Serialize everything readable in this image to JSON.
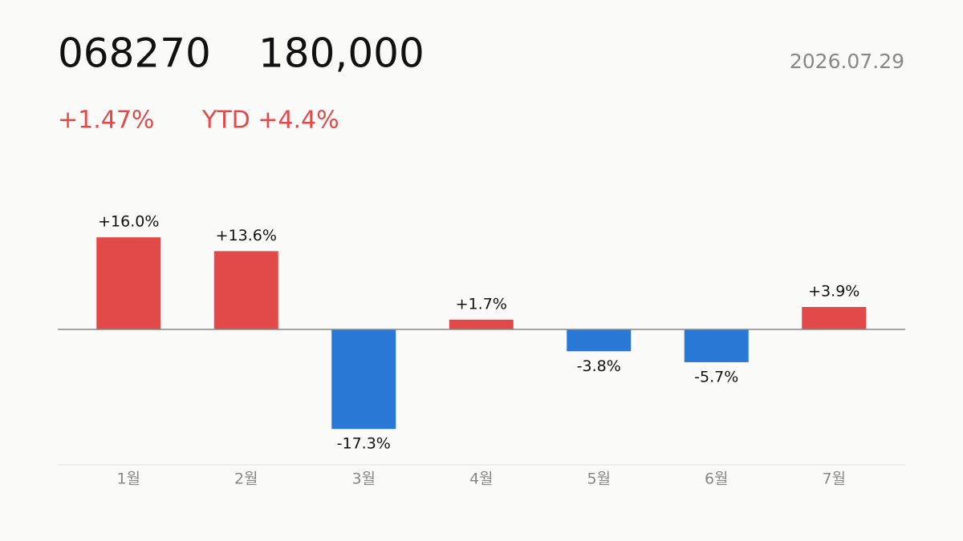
{
  "header": {
    "ticker": "068270",
    "price": "180,000",
    "date": "2026.07.29",
    "change": "+1.47%",
    "ytd": "YTD +4.4%"
  },
  "chart_data": {
    "type": "bar",
    "categories": [
      "1월",
      "2월",
      "3월",
      "4월",
      "5월",
      "6월",
      "7월"
    ],
    "values": [
      16.0,
      13.6,
      -17.3,
      1.7,
      -3.8,
      -5.7,
      3.9
    ],
    "value_labels": [
      "+16.0%",
      "+13.6%",
      "-17.3%",
      "+1.7%",
      "-3.8%",
      "-5.7%",
      "+3.9%"
    ],
    "positive_color": "#e24a4a",
    "negative_color": "#2a78d6"
  }
}
